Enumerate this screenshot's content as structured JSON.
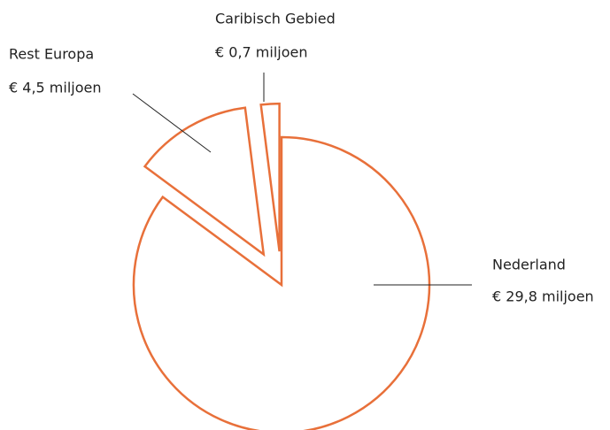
{
  "chart_data": {
    "type": "pie",
    "categories": [
      "Nederland",
      "Rest Europa",
      "Caribisch Gebied"
    ],
    "values": [
      29.8,
      4.5,
      0.7
    ],
    "value_labels": [
      "€ 29,8 miljoen",
      "€ 4,5 miljoen",
      "€ 0,7 miljoen"
    ],
    "color": "#e8703a"
  }
}
